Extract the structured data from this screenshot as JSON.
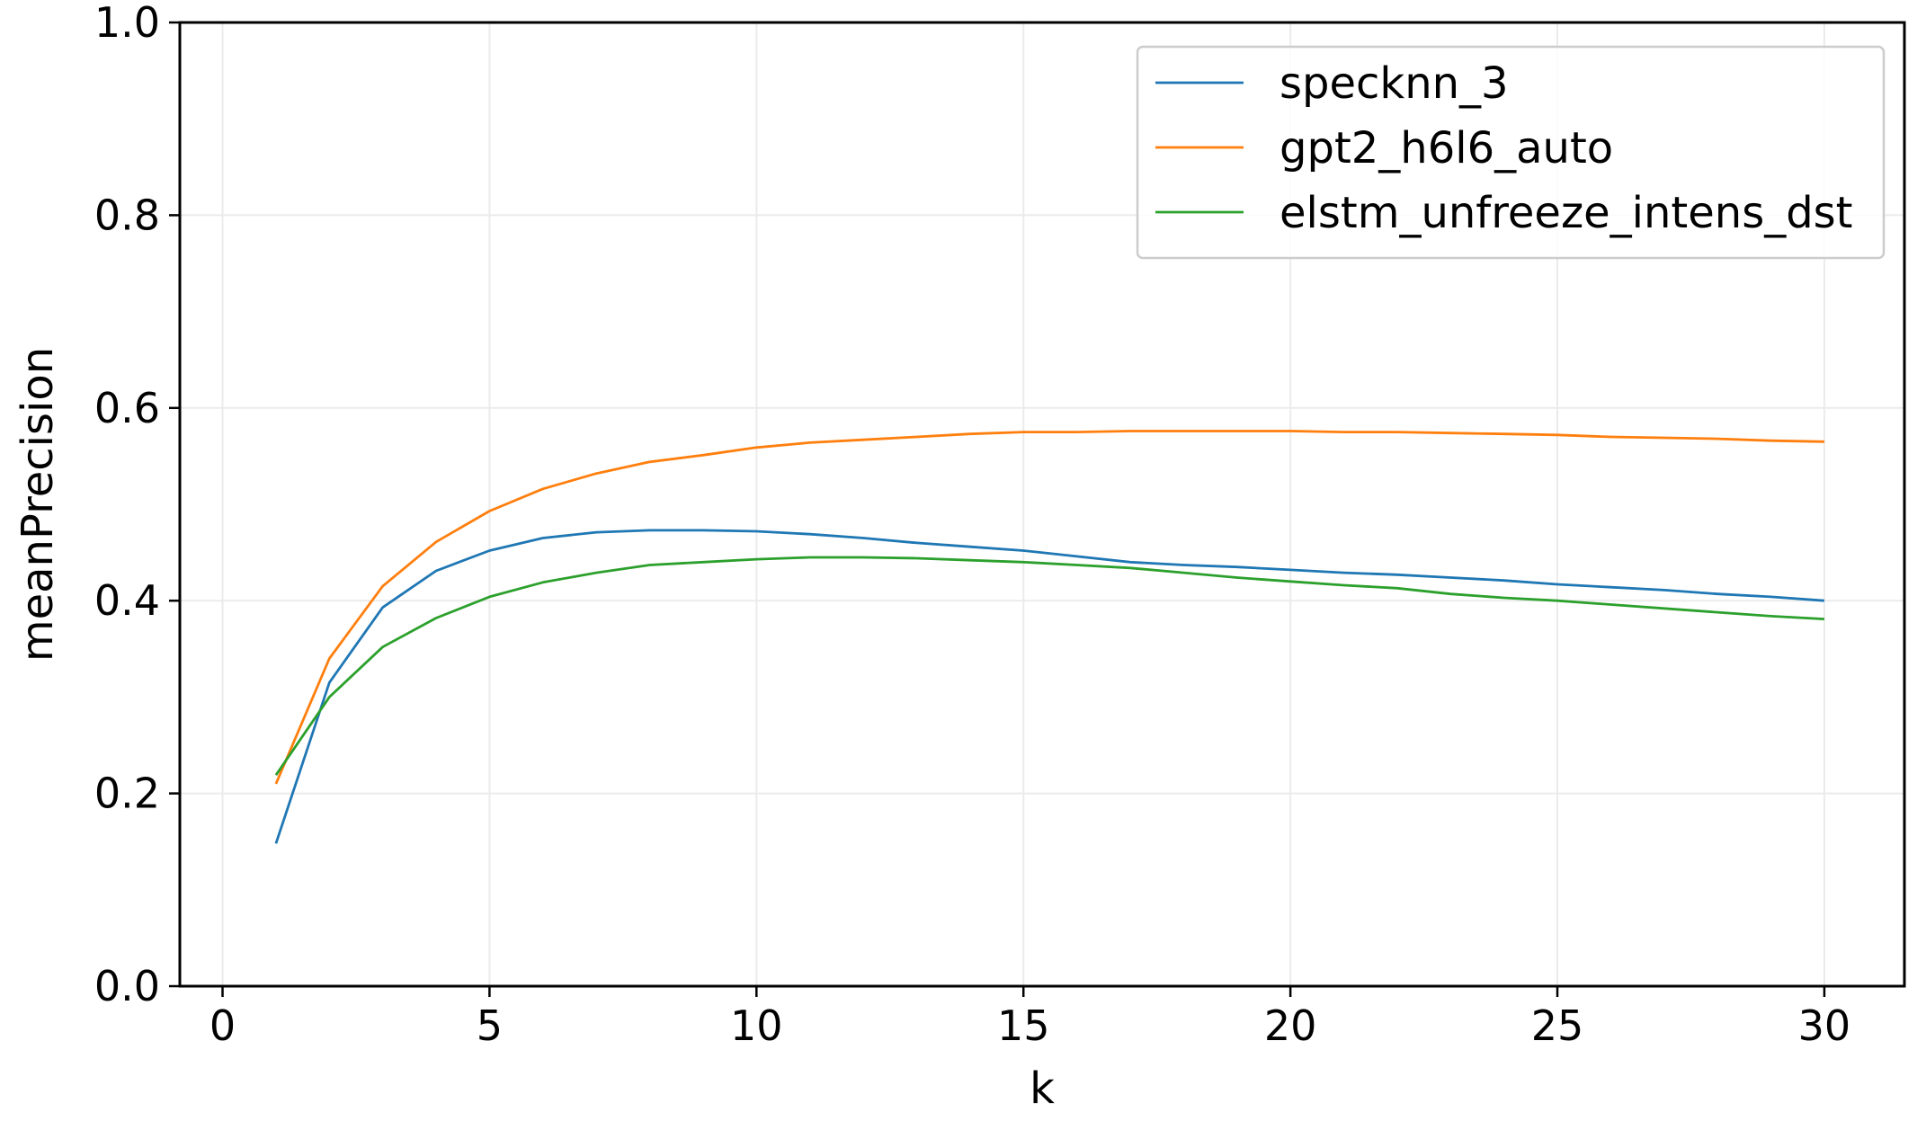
{
  "chart_data": {
    "type": "line",
    "title": "",
    "xlabel": "k",
    "ylabel": "meanPrecision",
    "xlim": [
      -0.8,
      31.5
    ],
    "ylim": [
      0.0,
      1.0
    ],
    "xticks": [
      0,
      5,
      10,
      15,
      20,
      25,
      30
    ],
    "xtick_labels": [
      "0",
      "5",
      "10",
      "15",
      "20",
      "25",
      "30"
    ],
    "yticks": [
      0.0,
      0.2,
      0.4,
      0.6,
      0.8,
      1.0
    ],
    "ytick_labels": [
      "0.0",
      "0.2",
      "0.4",
      "0.6",
      "0.8",
      "1.0"
    ],
    "grid": true,
    "legend_position": "top-right",
    "x": [
      1,
      2,
      3,
      4,
      5,
      6,
      7,
      8,
      9,
      10,
      11,
      12,
      13,
      14,
      15,
      16,
      17,
      18,
      19,
      20,
      21,
      22,
      23,
      24,
      25,
      26,
      27,
      28,
      29,
      30
    ],
    "series": [
      {
        "name": "specknn_3",
        "color": "#1f77b4",
        "values": [
          0.148,
          0.315,
          0.393,
          0.431,
          0.452,
          0.465,
          0.471,
          0.473,
          0.473,
          0.472,
          0.469,
          0.465,
          0.46,
          0.456,
          0.452,
          0.446,
          0.44,
          0.437,
          0.435,
          0.432,
          0.429,
          0.427,
          0.424,
          0.421,
          0.417,
          0.414,
          0.411,
          0.407,
          0.404,
          0.4
        ]
      },
      {
        "name": "gpt2_h6l6_auto",
        "color": "#ff7f0e",
        "values": [
          0.21,
          0.34,
          0.415,
          0.461,
          0.493,
          0.516,
          0.532,
          0.544,
          0.551,
          0.559,
          0.564,
          0.567,
          0.57,
          0.573,
          0.575,
          0.575,
          0.576,
          0.576,
          0.576,
          0.576,
          0.575,
          0.575,
          0.574,
          0.573,
          0.572,
          0.57,
          0.569,
          0.568,
          0.566,
          0.565
        ]
      },
      {
        "name": "elstm_unfreeze_intens_dst",
        "color": "#2ca02c",
        "values": [
          0.219,
          0.3,
          0.352,
          0.382,
          0.404,
          0.419,
          0.429,
          0.437,
          0.44,
          0.443,
          0.445,
          0.445,
          0.444,
          0.442,
          0.44,
          0.437,
          0.434,
          0.429,
          0.424,
          0.42,
          0.416,
          0.413,
          0.407,
          0.403,
          0.4,
          0.396,
          0.392,
          0.388,
          0.384,
          0.381
        ]
      }
    ]
  }
}
